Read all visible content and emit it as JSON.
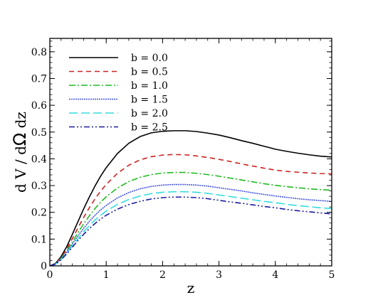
{
  "chart_data": {
    "type": "line",
    "xlabel": "z",
    "ylabel_parts": [
      "d V / d",
      "Ω",
      " dz"
    ],
    "xlim": [
      0,
      5
    ],
    "ylim": [
      0,
      0.85
    ],
    "xticks": [
      0,
      1,
      2,
      3,
      4,
      5
    ],
    "yticks": [
      0,
      0.1,
      0.2,
      0.3,
      0.4,
      0.5,
      0.6,
      0.7,
      0.8
    ],
    "xtick_labels": [
      "0",
      "1",
      "2",
      "3",
      "4",
      "5"
    ],
    "ytick_labels": [
      "0",
      "0.1",
      "0.2",
      "0.3",
      "0.4",
      "0.5",
      "0.6",
      "0.7",
      "0.8"
    ],
    "grid": false,
    "legend_position": "top-left",
    "x": [
      0,
      0.1,
      0.2,
      0.3,
      0.4,
      0.5,
      0.6,
      0.7,
      0.8,
      0.9,
      1.0,
      1.2,
      1.4,
      1.6,
      1.8,
      2.0,
      2.2,
      2.4,
      2.6,
      2.8,
      3.0,
      3.2,
      3.4,
      3.6,
      3.8,
      4.0,
      4.2,
      4.4,
      4.6,
      4.8,
      5.0
    ],
    "series": [
      {
        "name": "b = 0.0",
        "color": "#000000",
        "dash": "none",
        "values": [
          0,
          0.009,
          0.035,
          0.072,
          0.118,
          0.166,
          0.213,
          0.257,
          0.298,
          0.335,
          0.367,
          0.42,
          0.458,
          0.483,
          0.497,
          0.503,
          0.505,
          0.505,
          0.502,
          0.496,
          0.489,
          0.479,
          0.468,
          0.458,
          0.447,
          0.436,
          0.428,
          0.421,
          0.415,
          0.41,
          0.407
        ]
      },
      {
        "name": "b = 0.5",
        "color": "#cc2222",
        "dash": "7,5",
        "values": [
          0,
          0.008,
          0.031,
          0.063,
          0.102,
          0.142,
          0.181,
          0.217,
          0.25,
          0.279,
          0.304,
          0.346,
          0.376,
          0.396,
          0.408,
          0.414,
          0.416,
          0.415,
          0.411,
          0.405,
          0.398,
          0.39,
          0.381,
          0.373,
          0.365,
          0.358,
          0.353,
          0.35,
          0.347,
          0.345,
          0.344
        ]
      },
      {
        "name": "b = 1.0",
        "color": "#22bb22",
        "dash": "9,3,2,3",
        "values": [
          0,
          0.007,
          0.028,
          0.056,
          0.09,
          0.124,
          0.157,
          0.187,
          0.214,
          0.238,
          0.258,
          0.291,
          0.315,
          0.331,
          0.341,
          0.347,
          0.349,
          0.349,
          0.346,
          0.341,
          0.335,
          0.328,
          0.321,
          0.314,
          0.307,
          0.301,
          0.296,
          0.292,
          0.288,
          0.285,
          0.283
        ]
      },
      {
        "name": "b = 1.5",
        "color": "#4455dd",
        "dash": "2,1",
        "values": [
          0,
          0.007,
          0.026,
          0.052,
          0.082,
          0.112,
          0.14,
          0.166,
          0.189,
          0.209,
          0.226,
          0.254,
          0.274,
          0.288,
          0.297,
          0.302,
          0.304,
          0.304,
          0.302,
          0.298,
          0.292,
          0.286,
          0.28,
          0.273,
          0.267,
          0.261,
          0.256,
          0.251,
          0.247,
          0.244,
          0.241
        ]
      },
      {
        "name": "b = 2.0",
        "color": "#33dddd",
        "dash": "12,5",
        "values": [
          0,
          0.006,
          0.024,
          0.048,
          0.075,
          0.102,
          0.127,
          0.15,
          0.171,
          0.189,
          0.205,
          0.23,
          0.248,
          0.261,
          0.27,
          0.275,
          0.277,
          0.277,
          0.275,
          0.271,
          0.265,
          0.259,
          0.253,
          0.247,
          0.241,
          0.236,
          0.23,
          0.225,
          0.221,
          0.217,
          0.214
        ]
      },
      {
        "name": "b = 2.5",
        "color": "#1a1aa0",
        "dash": "8,3,2,3,2,3",
        "values": [
          0,
          0.006,
          0.023,
          0.045,
          0.07,
          0.095,
          0.118,
          0.139,
          0.158,
          0.175,
          0.189,
          0.212,
          0.229,
          0.241,
          0.25,
          0.255,
          0.257,
          0.257,
          0.255,
          0.251,
          0.245,
          0.239,
          0.234,
          0.228,
          0.222,
          0.217,
          0.211,
          0.206,
          0.202,
          0.198,
          0.194
        ]
      }
    ]
  }
}
